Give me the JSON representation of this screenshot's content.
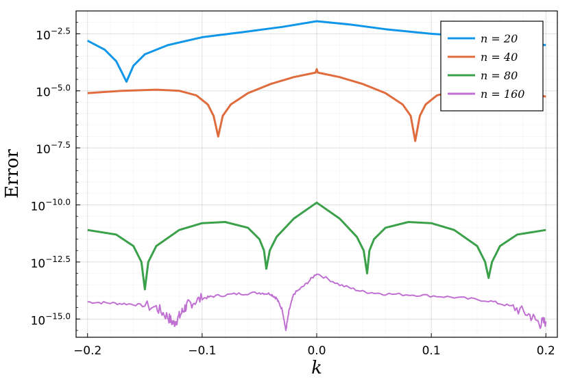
{
  "chart_data": {
    "type": "line",
    "title": "",
    "xlabel": "k",
    "ylabel": "Error",
    "xlim": [
      -0.21,
      0.21
    ],
    "ylim_log10": [
      -15.8,
      -1.5
    ],
    "y_scale": "log10",
    "x_ticks": [
      -0.2,
      -0.1,
      0.0,
      0.1,
      0.2
    ],
    "x_tick_labels": [
      "−0.2",
      "−0.1",
      "0.0",
      "0.1",
      "0.2"
    ],
    "y_ticks_log10": [
      -2.5,
      -5.0,
      -7.5,
      -10.0,
      -12.5,
      -15.0
    ],
    "y_tick_exponents": [
      "−2.5",
      "−5.0",
      "−7.5",
      "−10.0",
      "−12.5",
      "−15.0"
    ],
    "y_tick_base": "10",
    "grid": true,
    "legend_position": "top-right",
    "series": [
      {
        "name": "n = 20",
        "color": "#0f96e8",
        "x": [
          -0.2,
          -0.185,
          -0.175,
          -0.17,
          -0.166,
          -0.16,
          -0.15,
          -0.13,
          -0.1,
          -0.06,
          -0.03,
          0.0,
          0.03,
          0.06,
          0.1,
          0.13,
          0.16,
          0.2
        ],
        "log10_y": [
          -2.8,
          -3.2,
          -3.7,
          -4.2,
          -4.6,
          -3.9,
          -3.4,
          -3.0,
          -2.65,
          -2.4,
          -2.2,
          -1.95,
          -2.1,
          -2.3,
          -2.5,
          -2.6,
          -2.8,
          -3.0
        ]
      },
      {
        "name": "n = 40",
        "color": "#e06b3d",
        "x": [
          -0.2,
          -0.17,
          -0.14,
          -0.12,
          -0.105,
          -0.095,
          -0.09,
          -0.086,
          -0.082,
          -0.075,
          -0.06,
          -0.04,
          -0.02,
          -0.001,
          0.0,
          0.001,
          0.02,
          0.04,
          0.06,
          0.075,
          0.082,
          0.086,
          0.09,
          0.095,
          0.105,
          0.12,
          0.14,
          0.17,
          0.2
        ],
        "log10_y": [
          -5.1,
          -5.0,
          -4.95,
          -5.0,
          -5.2,
          -5.6,
          -6.1,
          -7.0,
          -6.1,
          -5.6,
          -5.1,
          -4.7,
          -4.4,
          -4.2,
          -4.05,
          -4.2,
          -4.4,
          -4.7,
          -5.1,
          -5.6,
          -6.1,
          -7.2,
          -6.1,
          -5.6,
          -5.2,
          -5.0,
          -4.95,
          -5.0,
          -5.25
        ]
      },
      {
        "name": "n = 80",
        "color": "#3aa04a",
        "x": [
          -0.2,
          -0.175,
          -0.16,
          -0.153,
          -0.15,
          -0.147,
          -0.14,
          -0.12,
          -0.1,
          -0.08,
          -0.06,
          -0.05,
          -0.046,
          -0.044,
          -0.041,
          -0.035,
          -0.02,
          0.0,
          0.02,
          0.035,
          0.041,
          0.044,
          0.046,
          0.05,
          0.06,
          0.08,
          0.1,
          0.12,
          0.14,
          0.147,
          0.15,
          0.153,
          0.16,
          0.175,
          0.2
        ],
        "log10_y": [
          -11.1,
          -11.3,
          -11.8,
          -12.5,
          -13.7,
          -12.5,
          -11.8,
          -11.1,
          -10.8,
          -10.75,
          -11.0,
          -11.5,
          -12.0,
          -12.8,
          -12.0,
          -11.4,
          -10.6,
          -9.9,
          -10.6,
          -11.4,
          -12.0,
          -13.0,
          -12.0,
          -11.5,
          -11.0,
          -10.75,
          -10.8,
          -11.1,
          -11.8,
          -12.5,
          -13.2,
          -12.5,
          -11.8,
          -11.3,
          -11.1
        ]
      },
      {
        "name": "n = 160",
        "color": "#c06fd2",
        "x": [
          -0.2,
          -0.18,
          -0.16,
          -0.14,
          -0.13,
          -0.125,
          -0.12,
          -0.115,
          -0.11,
          -0.1,
          -0.09,
          -0.07,
          -0.05,
          -0.04,
          -0.035,
          -0.03,
          -0.027,
          -0.024,
          -0.02,
          -0.01,
          0.0,
          0.02,
          0.04,
          0.06,
          0.09,
          0.12,
          0.15,
          0.17,
          0.185,
          0.195,
          0.2
        ],
        "log10_y": [
          -14.25,
          -14.3,
          -14.35,
          -14.5,
          -14.9,
          -15.2,
          -14.9,
          -14.5,
          -14.3,
          -14.1,
          -14.0,
          -13.9,
          -13.85,
          -13.9,
          -14.1,
          -14.6,
          -15.5,
          -14.6,
          -13.9,
          -13.5,
          -13.0,
          -13.5,
          -13.8,
          -13.9,
          -13.95,
          -14.05,
          -14.2,
          -14.45,
          -14.8,
          -15.2,
          -15.1
        ]
      }
    ]
  }
}
